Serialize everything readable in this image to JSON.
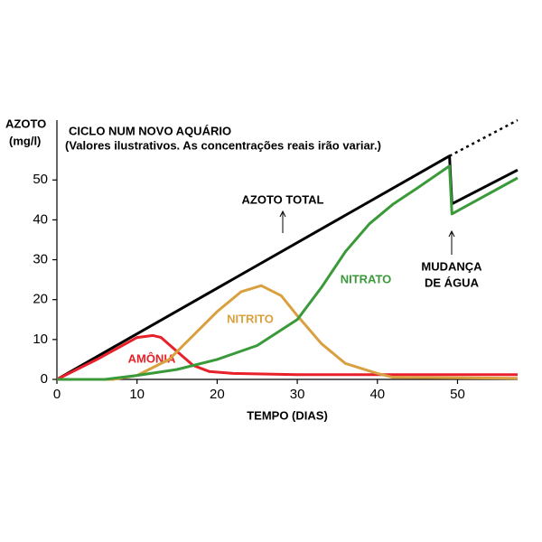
{
  "chart_data": {
    "type": "line",
    "title": "CICLO NUM NOVO AQUÁRIO",
    "subtitle": "(Valores ilustrativos. As concentrações reais irão variar.)",
    "ylabel": [
      "AZOTO",
      "(mg/l)"
    ],
    "xlabel": "TEMPO (DIAS)",
    "annotation": [
      "MUDANÇA",
      "DE ÁGUA"
    ],
    "xlim": [
      0,
      57.5
    ],
    "ylim": [
      0,
      65
    ],
    "xticks": [
      0,
      10,
      20,
      30,
      40,
      50
    ],
    "yticks": [
      0,
      10,
      20,
      30,
      40,
      50
    ],
    "series": [
      {
        "name": "AZOTO TOTAL",
        "color": "#000000",
        "x": [
          0,
          49,
          49.3,
          57.5
        ],
        "values": [
          0,
          56,
          44,
          52.5
        ]
      },
      {
        "color": "#000000",
        "style": "dotted",
        "x": [
          49,
          57.5
        ],
        "values": [
          56,
          65
        ]
      },
      {
        "name": "AMÔNIA",
        "color": "#e8202a",
        "x": [
          0,
          5,
          10,
          12,
          13,
          15,
          17,
          19,
          22,
          30,
          57.5
        ],
        "values": [
          0,
          5,
          10.5,
          11,
          10.5,
          7,
          3.5,
          2,
          1.5,
          1.2,
          1.2
        ]
      },
      {
        "name": "NITRITO",
        "color": "#d9a040",
        "x": [
          0,
          7,
          10,
          14,
          17,
          20,
          23,
          25.5,
          28,
          30,
          33,
          36,
          40,
          42,
          57.5
        ],
        "values": [
          0,
          0,
          1,
          5,
          11,
          17,
          22,
          23.5,
          21,
          16,
          9,
          4,
          1.5,
          0.5,
          0.3
        ]
      },
      {
        "name": "NITRATO",
        "color": "#3a9a3a",
        "x": [
          0,
          6,
          10,
          15,
          20,
          25,
          30,
          33,
          36,
          39,
          42,
          45,
          49,
          49.3,
          57.5
        ],
        "values": [
          0,
          0,
          1,
          2.5,
          5,
          8.5,
          15,
          23,
          32,
          39,
          44,
          48,
          53.5,
          41.5,
          50.5
        ]
      }
    ]
  }
}
